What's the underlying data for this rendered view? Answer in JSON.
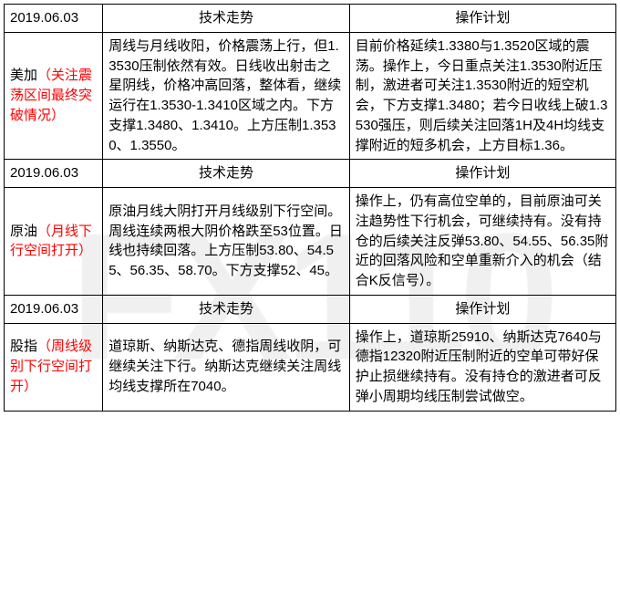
{
  "watermark": "FX110",
  "colors": {
    "border": "#000000",
    "text": "#000000",
    "note": "#ff0000",
    "background": "#ffffff",
    "watermark": "rgba(0,0,0,0.06)"
  },
  "headers": {
    "trend": "技术走势",
    "plan": "操作计划"
  },
  "sections": [
    {
      "date": "2019.06.03",
      "name": "美加",
      "note": "（关注震荡区间最终突破情况）",
      "trend": "周线与月线收阳，价格震荡上行，但1.3530压制依然有效。日线收出射击之星阴线，价格冲高回落，整体看，继续运行在1.3530-1.3410区域之内。下方支撑1.3480、1.3410。上方压制1.3530、1.3550。",
      "plan": "目前价格延续1.3380与1.3520区域的震荡。操作上，今日重点关注1.3530附近压制，激进者可关注1.3530附近的短空机会，下方支撑1.3480；若今日收线上破1.3530强压，则后续关注回落1H及4H均线支撑附近的短多机会，上方目标1.36。"
    },
    {
      "date": "2019.06.03",
      "name": "原油",
      "note": "（月线下行空间打开）",
      "trend": "原油月线大阴打开月线级别下行空间。周线连续两根大阴价格跌至53位置。日线也持续回落。上方压制53.80、54.55、56.35、58.70。下方支撑52、45。",
      "plan": "操作上，仍有高位空单的，目前原油可关注趋势性下行机会，可继续持有。没有持仓的后续关注反弹53.80、54.55、56.35附近的回落风险和空单重新介入的机会（结合K反信号）。"
    },
    {
      "date": "2019.06.03",
      "name": "股指",
      "note": "（周线级别下行空间打开）",
      "trend": "道琼斯、纳斯达克、德指周线收阴，可继续关注下行。纳斯达克继续关注周线均线支撑所在7040。",
      "plan": "操作上，道琼斯25910、纳斯达克7640与德指12320附近压制附近的空单可带好保护止损继续持有。没有持仓的激进者可反弹小周期均线压制尝试做空。"
    }
  ]
}
